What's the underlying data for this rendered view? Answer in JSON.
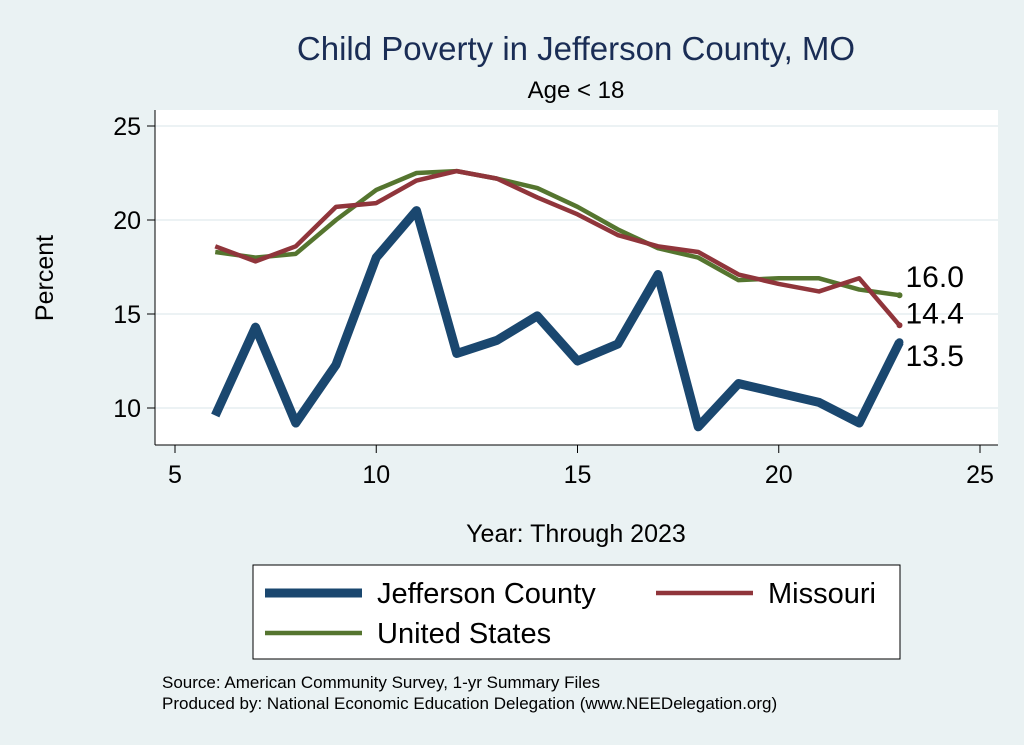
{
  "chart_data": {
    "type": "line",
    "title": "Child Poverty in Jefferson County, MO",
    "subtitle": "Age < 18",
    "xlabel": "Year: Through 2023",
    "ylabel": "Percent",
    "xlim": [
      5,
      25
    ],
    "ylim": [
      8.2,
      26
    ],
    "xticks": [
      5,
      10,
      15,
      20,
      25
    ],
    "yticks": [
      10,
      15,
      20,
      25
    ],
    "grid": true,
    "legend_position": "bottom",
    "x": [
      6,
      7,
      8,
      9,
      10,
      11,
      12,
      13,
      14,
      15,
      16,
      17,
      18,
      19,
      20,
      21,
      22,
      23
    ],
    "series": [
      {
        "name": "Jefferson County",
        "color": "#1a476f",
        "values": [
          9.6,
          14.3,
          9.2,
          12.3,
          18.0,
          20.5,
          12.9,
          13.6,
          14.9,
          12.5,
          13.4,
          17.1,
          9.0,
          11.3,
          10.8,
          10.3,
          9.2,
          13.5
        ],
        "end_label": "13.5"
      },
      {
        "name": "Missouri",
        "color": "#90353b",
        "values": [
          18.6,
          17.8,
          18.6,
          20.7,
          20.9,
          22.1,
          22.6,
          22.2,
          21.2,
          20.3,
          19.2,
          18.6,
          18.3,
          17.1,
          16.6,
          16.2,
          16.9,
          14.4
        ],
        "end_label": "14.4"
      },
      {
        "name": "United States",
        "color": "#55752f",
        "values": [
          18.3,
          18.0,
          18.2,
          20.0,
          21.6,
          22.5,
          22.6,
          22.2,
          21.7,
          20.7,
          19.5,
          18.5,
          18.0,
          16.8,
          16.9,
          16.9,
          16.3,
          16.0
        ],
        "end_label": "16.0"
      }
    ]
  },
  "footer": {
    "source": "Source: American Community Survey, 1-yr Summary Files",
    "produced": "Produced by: National Economic Education Delegation (www.NEEDelegation.org)"
  }
}
